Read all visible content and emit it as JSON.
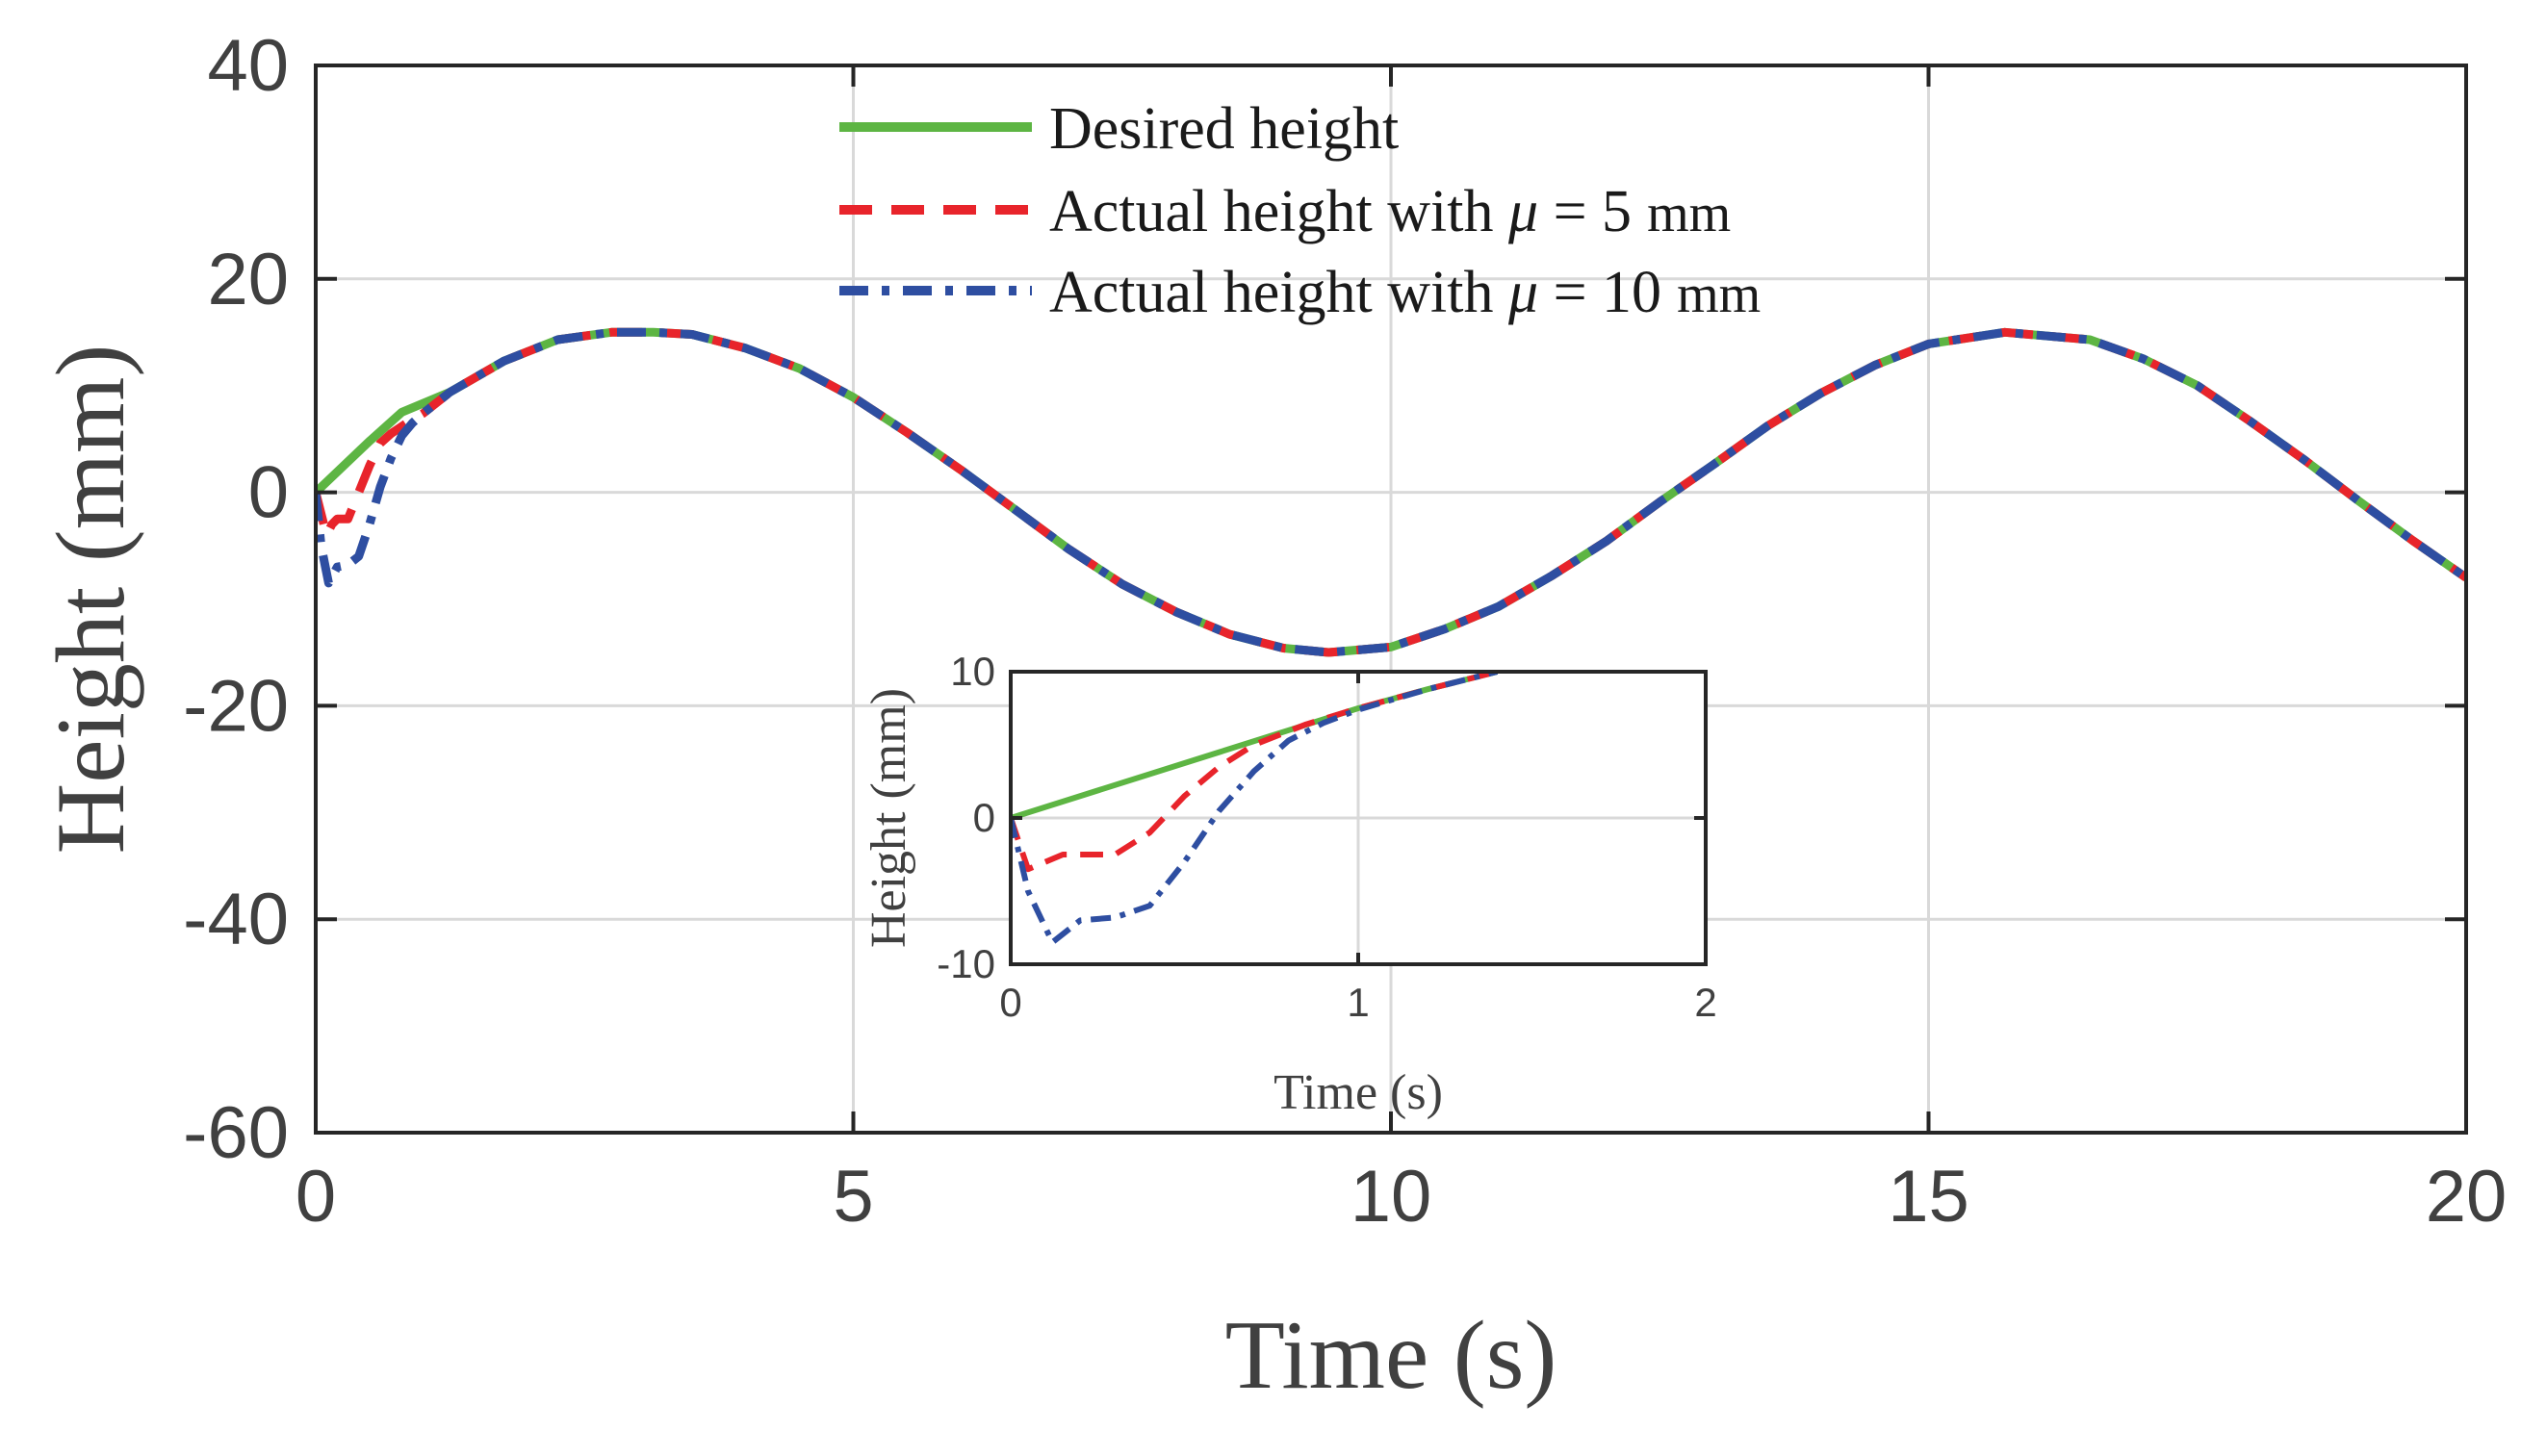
{
  "chart_data": [
    {
      "type": "line",
      "title": "",
      "xlabel": "Time (s)",
      "ylabel": "Height (mm)",
      "xlim": [
        0,
        20
      ],
      "ylim": [
        -60,
        40
      ],
      "xticks": [
        "0",
        "5",
        "10",
        "15",
        "20"
      ],
      "yticks": [
        "40",
        "20",
        "0",
        "-20",
        "-40",
        "-60"
      ],
      "grid": true,
      "legend_position": "top-center",
      "series": [
        {
          "name": "Desired height",
          "color": "#5db543",
          "style": "solid",
          "x": [
            0,
            0.5,
            0.8,
            1.25,
            1.75,
            2.25,
            2.75,
            3.14,
            3.5,
            4.0,
            4.5,
            5.0,
            5.5,
            6.0,
            6.5,
            7.0,
            7.5,
            8.0,
            8.5,
            9.0,
            9.42,
            10.0,
            10.5,
            11.0,
            11.5,
            12.0,
            12.5,
            13.0,
            13.5,
            14.0,
            14.5,
            15.0,
            15.71,
            16.5,
            17.0,
            17.5,
            18.0,
            18.5,
            19.0,
            19.5,
            20.0
          ],
          "y": [
            0,
            4.8,
            7.5,
            9.4,
            12.3,
            14.3,
            15.0,
            15.0,
            14.8,
            13.5,
            11.6,
            8.9,
            5.6,
            2.1,
            -1.6,
            -5.3,
            -8.6,
            -11.2,
            -13.3,
            -14.6,
            -15.0,
            -14.5,
            -12.8,
            -10.7,
            -7.8,
            -4.6,
            -0.9,
            2.6,
            6.2,
            9.3,
            11.9,
            13.9,
            15.0,
            14.3,
            12.5,
            10.0,
            6.6,
            3.0,
            -0.8,
            -4.5,
            -8.0
          ]
        },
        {
          "name": "Actual height with μ = 5 mm",
          "color": "#e8242b",
          "style": "dashed",
          "x": [
            0,
            0.1,
            0.15,
            0.2,
            0.3,
            0.5,
            0.6,
            0.7,
            0.85,
            1.0,
            1.25,
            1.75,
            2.25,
            2.75,
            3.14,
            3.5,
            4.0,
            4.5,
            5.0,
            5.5,
            6.0,
            6.5,
            7.0,
            7.5,
            8.0,
            8.5,
            9.0,
            9.42,
            10.0,
            10.5,
            11.0,
            11.5,
            12.0,
            12.5,
            13.0,
            13.5,
            14.0,
            14.5,
            15.0,
            15.71,
            16.5,
            17.0,
            17.5,
            18.0,
            18.5,
            19.0,
            19.5,
            20.0
          ],
          "y": [
            0,
            -4.0,
            -3.0,
            -2.5,
            -2.5,
            2.5,
            4.6,
            5.5,
            6.5,
            7.4,
            9.4,
            12.3,
            14.3,
            15.0,
            15.0,
            14.8,
            13.5,
            11.6,
            8.9,
            5.6,
            2.1,
            -1.6,
            -5.3,
            -8.6,
            -11.2,
            -13.3,
            -14.6,
            -15.0,
            -14.5,
            -12.8,
            -10.7,
            -7.8,
            -4.6,
            -0.9,
            2.6,
            6.2,
            9.3,
            11.9,
            13.9,
            15.0,
            14.3,
            12.5,
            10.0,
            6.6,
            3.0,
            -0.8,
            -4.5,
            -8.0
          ]
        },
        {
          "name": "Actual height with μ = 10 mm",
          "color": "#2e4ea1",
          "style": "dashdot",
          "x": [
            0,
            0.05,
            0.12,
            0.2,
            0.3,
            0.4,
            0.5,
            0.6,
            0.7,
            0.8,
            0.9,
            1.0,
            1.25,
            1.75,
            2.25,
            2.75,
            3.14,
            3.5,
            4.0,
            4.5,
            5.0,
            5.5,
            6.0,
            6.5,
            7.0,
            7.5,
            8.0,
            8.5,
            9.0,
            9.42,
            10.0,
            10.5,
            11.0,
            11.5,
            12.0,
            12.5,
            13.0,
            13.5,
            14.0,
            14.5,
            15.0,
            15.71,
            16.5,
            17.0,
            17.5,
            18.0,
            18.5,
            19.0,
            19.5,
            20.0
          ],
          "y": [
            0,
            -5.0,
            -8.5,
            -7.0,
            -6.8,
            -6.0,
            -3.0,
            0.5,
            3.2,
            5.3,
            6.5,
            7.4,
            9.4,
            12.3,
            14.3,
            15.0,
            15.0,
            14.8,
            13.5,
            11.6,
            8.9,
            5.6,
            2.1,
            -1.6,
            -5.3,
            -8.6,
            -11.2,
            -13.3,
            -14.6,
            -15.0,
            -14.5,
            -12.8,
            -10.7,
            -7.8,
            -4.6,
            -0.9,
            2.6,
            6.2,
            9.3,
            11.9,
            13.9,
            15.0,
            14.3,
            12.5,
            10.0,
            6.6,
            3.0,
            -0.8,
            -4.5,
            -8.0
          ]
        }
      ]
    },
    {
      "type": "line",
      "title": "",
      "xlabel": "Time (s)",
      "ylabel": "Height (mm)",
      "xlim": [
        0,
        2
      ],
      "ylim": [
        -10,
        10
      ],
      "xticks": [
        "0",
        "1",
        "2"
      ],
      "yticks": [
        "10",
        "0",
        "-10"
      ],
      "grid": true,
      "series": [
        {
          "name": "Desired height",
          "color": "#5db543",
          "style": "solid",
          "x": [
            0,
            0.6,
            0.8,
            1.0,
            1.2,
            1.4
          ],
          "y": [
            0,
            4.5,
            6.0,
            7.5,
            8.8,
            10.0
          ]
        },
        {
          "name": "Actual height with μ = 5 mm",
          "color": "#e8242b",
          "style": "dashed",
          "x": [
            0,
            0.05,
            0.1,
            0.15,
            0.2,
            0.3,
            0.4,
            0.5,
            0.6,
            0.7,
            0.85,
            1.0,
            1.2,
            1.4
          ],
          "y": [
            0,
            -3.5,
            -3.0,
            -2.5,
            -2.5,
            -2.5,
            -1.0,
            1.5,
            3.5,
            5.0,
            6.4,
            7.5,
            8.8,
            10.0
          ]
        },
        {
          "name": "Actual height with μ = 10 mm",
          "color": "#2e4ea1",
          "style": "dashdot",
          "x": [
            0,
            0.05,
            0.12,
            0.2,
            0.3,
            0.4,
            0.5,
            0.6,
            0.7,
            0.8,
            0.9,
            1.0,
            1.2,
            1.4
          ],
          "y": [
            0,
            -5.0,
            -8.5,
            -7.0,
            -6.8,
            -6.0,
            -3.0,
            0.5,
            3.2,
            5.3,
            6.5,
            7.4,
            8.8,
            10.0
          ]
        }
      ]
    }
  ],
  "legend": {
    "items": [
      {
        "prefix": "Desired height",
        "symbol": "",
        "suffix": ""
      },
      {
        "prefix": "Actual height with ",
        "symbol": "μ",
        "suffix": " = 5",
        "unit": "mm"
      },
      {
        "prefix": "Actual height with ",
        "symbol": "μ",
        "suffix": " = 10",
        "unit": "mm"
      }
    ]
  }
}
